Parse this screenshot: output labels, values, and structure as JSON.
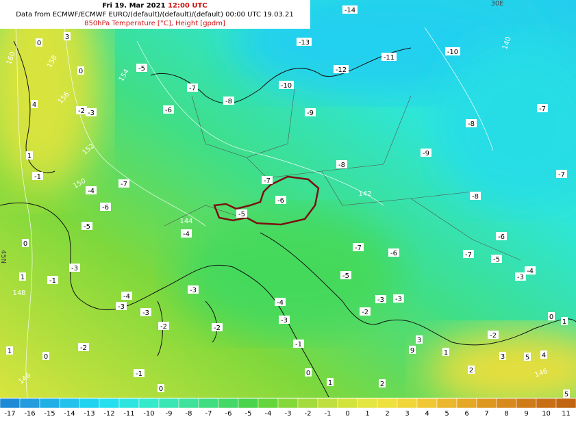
{
  "header": {
    "title_date": "Fri 19. Mar 2021",
    "title_time": "12:00 UTC",
    "source": "Data from ECMWF/ECMWF EURO/(default)/(default)/(default) 00:00 UTC 19.03.21",
    "variable": "850hPa Temperature [°C], Height [gpdm]"
  },
  "map": {
    "temperature_labels": [
      -14,
      -13,
      -11,
      -10,
      -12,
      -10,
      -9,
      -8,
      -7,
      -6,
      -5,
      -7,
      -8,
      -9,
      -7,
      -8,
      -8,
      -7,
      -6,
      -5,
      -7,
      -4,
      -6,
      -5,
      -4,
      -2,
      -3,
      0,
      3,
      0,
      4,
      1,
      -1,
      0,
      1,
      -1,
      -3,
      -7,
      -6,
      -7,
      -5,
      -6,
      -4,
      -3,
      -5,
      -4,
      -3,
      -3,
      -4,
      -3,
      -3,
      -2,
      -2,
      -2,
      -1,
      -2,
      -3,
      -3,
      -2,
      0,
      1,
      3,
      5,
      4,
      2,
      1,
      1,
      0,
      2,
      0,
      -1,
      0,
      1,
      5,
      3,
      9
    ],
    "height_labels": [
      160,
      158,
      156,
      154,
      152,
      150,
      148,
      146,
      146,
      144,
      142,
      140
    ],
    "grid_labels": [
      "30E",
      "45N"
    ]
  },
  "colorbar": {
    "ticks": [
      -17,
      -16,
      -15,
      -14,
      -13,
      -12,
      -11,
      -10,
      -9,
      -8,
      -7,
      -6,
      -5,
      -4,
      -3,
      -2,
      -1,
      0,
      1,
      2,
      3,
      4,
      5,
      6,
      7,
      8,
      9,
      10,
      11
    ],
    "colors": [
      "#1e8ad6",
      "#249cde",
      "#20afe6",
      "#22c2ec",
      "#1fd3f0",
      "#25dfee",
      "#2ee6df",
      "#33eacb",
      "#3ae6b3",
      "#3ee29b",
      "#41dd81",
      "#45d866",
      "#4cd34c",
      "#64d53a",
      "#85d83a",
      "#a3db3c",
      "#bfdf40",
      "#d3e33e",
      "#e3e540",
      "#eee13e",
      "#f1d63a",
      "#f0c834",
      "#ebb72c",
      "#e5a726",
      "#de981f",
      "#d78a1b",
      "#cf7c18",
      "#c86f15",
      "#c16512"
    ]
  }
}
